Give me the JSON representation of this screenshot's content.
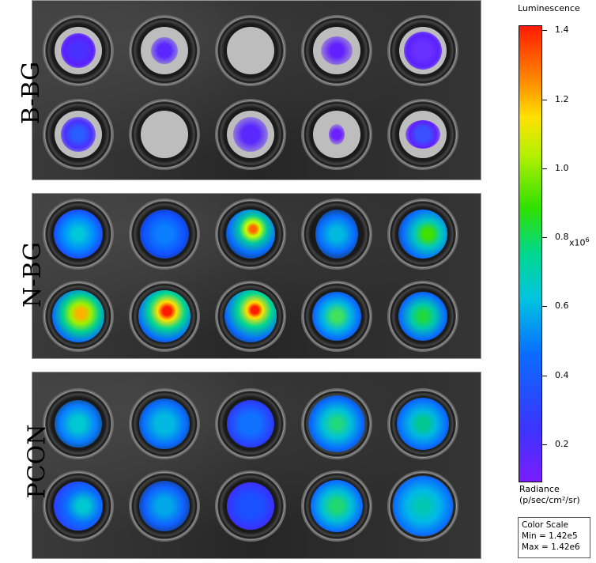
{
  "groups": [
    {
      "label": "B-BG"
    },
    {
      "label": "N-BG"
    },
    {
      "label": "PCON"
    }
  ],
  "colorbar": {
    "title": "Luminescence",
    "ticks": [
      "1.4",
      "1.2",
      "1.0",
      "0.8",
      "0.6",
      "0.4",
      "0.2"
    ],
    "multiplier": "x10",
    "multiplier_exp": "6",
    "units_line1": "Radiance",
    "units_line2": "(p/sec/cm²/sr)",
    "color_scale_title": "Color Scale",
    "min": "Min = 1.42e5",
    "max": "Max = 1.42e6"
  }
}
